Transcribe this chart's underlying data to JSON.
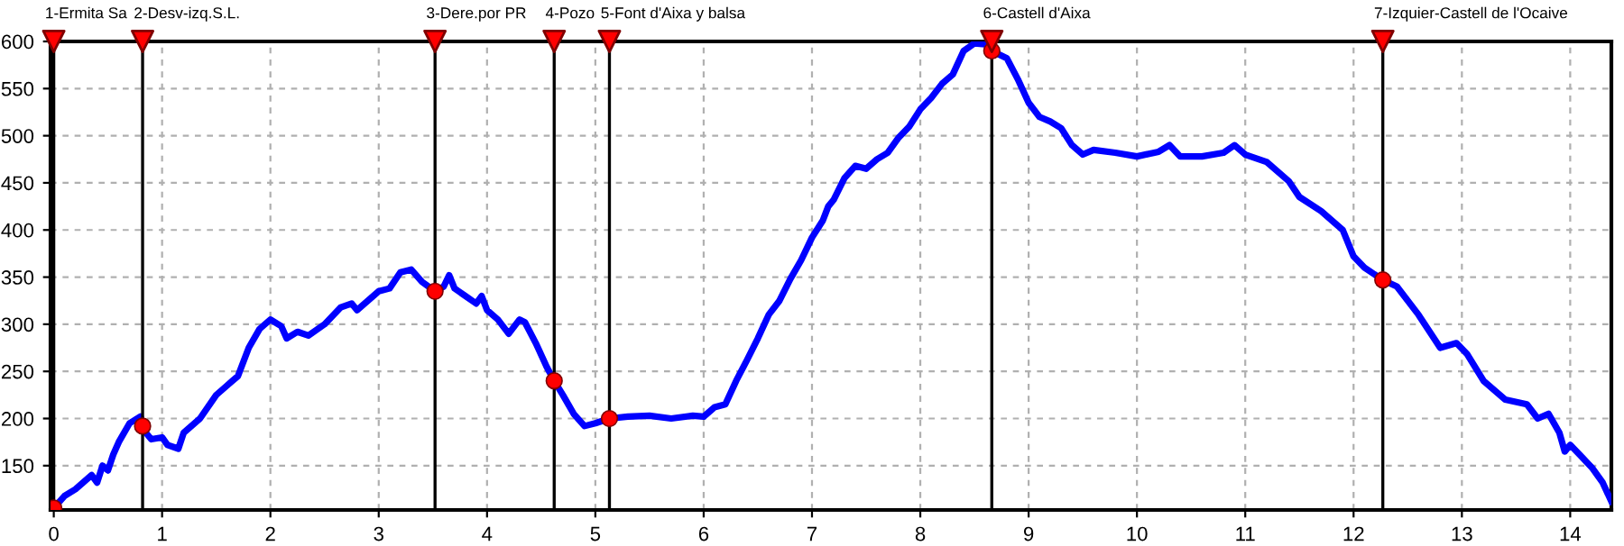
{
  "chart_data": {
    "type": "line",
    "x": [
      0,
      0.1,
      0.2,
      0.3,
      0.35,
      0.4,
      0.45,
      0.5,
      0.55,
      0.6,
      0.7,
      0.8,
      0.85,
      0.9,
      1.0,
      1.05,
      1.15,
      1.2,
      1.35,
      1.5,
      1.6,
      1.7,
      1.8,
      1.9,
      2.0,
      2.1,
      2.15,
      2.25,
      2.35,
      2.5,
      2.65,
      2.75,
      2.8,
      2.9,
      3.0,
      3.1,
      3.2,
      3.3,
      3.4,
      3.52,
      3.6,
      3.65,
      3.7,
      3.8,
      3.9,
      3.95,
      4.0,
      4.1,
      4.2,
      4.3,
      4.35,
      4.45,
      4.55,
      4.62,
      4.7,
      4.8,
      4.9,
      5.0,
      5.13,
      5.3,
      5.5,
      5.7,
      5.9,
      6.0,
      6.1,
      6.2,
      6.3,
      6.4,
      6.5,
      6.6,
      6.7,
      6.8,
      6.9,
      7.0,
      7.1,
      7.15,
      7.2,
      7.3,
      7.4,
      7.5,
      7.6,
      7.7,
      7.8,
      7.9,
      8.0,
      8.1,
      8.2,
      8.3,
      8.4,
      8.5,
      8.6,
      8.66,
      8.8,
      8.9,
      9.0,
      9.1,
      9.2,
      9.3,
      9.4,
      9.5,
      9.6,
      9.8,
      10.0,
      10.2,
      10.3,
      10.4,
      10.6,
      10.8,
      10.9,
      11.0,
      11.2,
      11.4,
      11.5,
      11.7,
      11.8,
      11.9,
      12.0,
      12.1,
      12.27,
      12.4,
      12.6,
      12.8,
      12.95,
      13.05,
      13.2,
      13.4,
      13.6,
      13.7,
      13.8,
      13.9,
      13.95,
      14.0,
      14.1,
      14.2,
      14.3,
      14.38
    ],
    "series": [
      {
        "color": "#0000ff",
        "values": [
          105,
          118,
          125,
          135,
          140,
          132,
          150,
          145,
          162,
          175,
          195,
          202,
          185,
          178,
          180,
          172,
          168,
          185,
          200,
          225,
          235,
          245,
          275,
          295,
          305,
          298,
          285,
          292,
          288,
          300,
          318,
          322,
          315,
          325,
          335,
          338,
          355,
          358,
          345,
          335,
          340,
          352,
          338,
          330,
          322,
          330,
          315,
          305,
          290,
          305,
          302,
          280,
          255,
          240,
          225,
          205,
          192,
          195,
          200,
          202,
          203,
          200,
          203,
          202,
          212,
          215,
          240,
          262,
          285,
          310,
          325,
          348,
          368,
          392,
          410,
          425,
          432,
          455,
          468,
          465,
          475,
          482,
          498,
          510,
          528,
          540,
          555,
          565,
          590,
          598,
          597,
          590,
          582,
          560,
          535,
          520,
          515,
          508,
          490,
          480,
          485,
          482,
          478,
          483,
          490,
          478,
          478,
          482,
          490,
          480,
          472,
          452,
          435,
          420,
          410,
          400,
          372,
          360,
          347,
          340,
          310,
          275,
          280,
          268,
          240,
          220,
          215,
          200,
          205,
          185,
          165,
          172,
          160,
          148,
          132,
          112
        ]
      },
      {
        "type": "scatter",
        "color": "#ff0000",
        "marker": "circle",
        "x": [
          0,
          0.82,
          3.52,
          4.62,
          5.13,
          8.66,
          12.27
        ],
        "values": [
          105,
          192,
          335,
          240,
          200,
          590,
          347
        ]
      }
    ],
    "xlim": [
      -0.03,
      14.38
    ],
    "ylim": [
      103,
      600
    ],
    "xticks": [
      0,
      1,
      2,
      3,
      4,
      5,
      6,
      7,
      8,
      9,
      10,
      11,
      12,
      13,
      14
    ],
    "yticks": [
      150,
      200,
      250,
      300,
      350,
      400,
      450,
      500,
      550,
      600
    ],
    "grid": true,
    "line_style": "solid",
    "marker": "none",
    "ref_lines": [
      {
        "axis": "x",
        "value": 0,
        "label": "1-Ermita Sa",
        "color": "#000000"
      },
      {
        "axis": "x",
        "value": 0.82,
        "label": "2-Desv-izq.S.L.",
        "color": "#000000"
      },
      {
        "axis": "x",
        "value": 3.52,
        "label": "3-Dere.por PR",
        "color": "#000000"
      },
      {
        "axis": "x",
        "value": 4.62,
        "label": "4-Pozo",
        "color": "#000000"
      },
      {
        "axis": "x",
        "value": 5.13,
        "label": "5-Font d'Aixa y balsa",
        "color": "#000000"
      },
      {
        "axis": "x",
        "value": 8.66,
        "label": "6-Castell d'Aixa",
        "color": "#000000"
      },
      {
        "axis": "x",
        "value": 12.27,
        "label": "7-Izquier-Castell de l'Ocaive",
        "color": "#000000"
      }
    ]
  }
}
